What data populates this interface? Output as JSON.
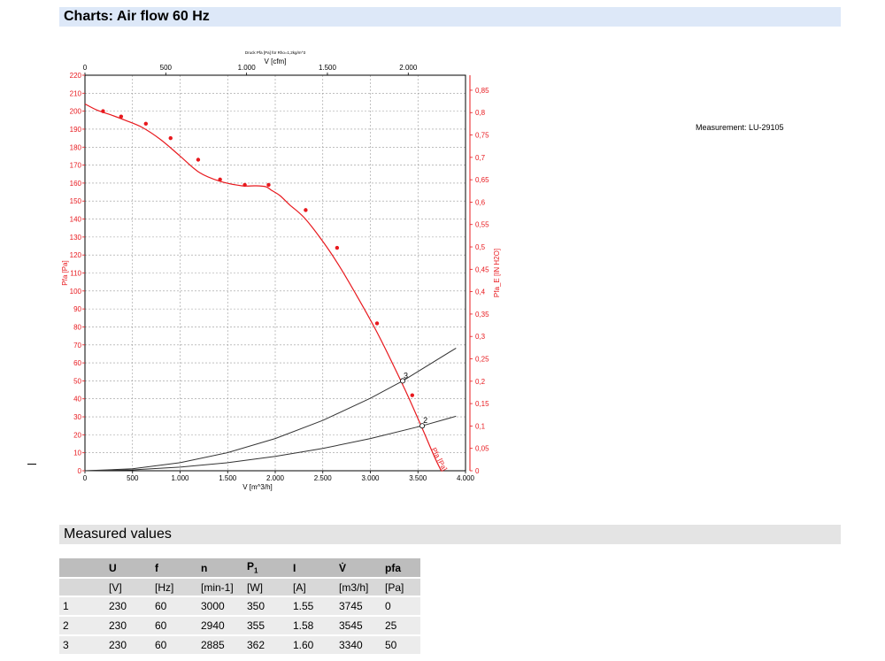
{
  "header": {
    "charts_title": "Charts: Air flow 60 Hz",
    "measured_title": "Measured values"
  },
  "measurement_note": "Measurement: LU-29105",
  "chart_data": {
    "type": "line",
    "title": "",
    "subtitle": "Druck Pfa [Pa] für Rho=1,2kg/m^3",
    "xlabel": "V [m^3/h]",
    "x2label": "V [cfm]",
    "ylabel": "Pfa [Pa]",
    "y2label": "Pfa_E [IN H2O]",
    "xlim": [
      0,
      4000
    ],
    "x2lim": [
      0,
      2354.3
    ],
    "ylim": [
      0,
      220
    ],
    "y2lim": [
      0,
      0.8835
    ],
    "grid": true,
    "xticks": [
      0,
      500,
      1000,
      1500,
      2000,
      2500,
      3000,
      3500,
      4000
    ],
    "xtick_labels": [
      "0",
      "500",
      "1.000",
      "1.500",
      "2.000",
      "2.500",
      "3.000",
      "3.500",
      "4.000"
    ],
    "x2ticks": [
      0,
      500,
      1000,
      1500,
      2000
    ],
    "x2tick_labels": [
      "0",
      "500",
      "1.000",
      "1.500",
      "2.000"
    ],
    "yticks": [
      0,
      10,
      20,
      30,
      40,
      50,
      60,
      70,
      80,
      90,
      100,
      110,
      120,
      130,
      140,
      150,
      160,
      170,
      180,
      190,
      200,
      210,
      220
    ],
    "y2ticks": [
      0,
      0.05,
      0.1,
      0.15,
      0.2,
      0.25,
      0.3,
      0.35,
      0.4,
      0.45,
      0.5,
      0.55,
      0.6,
      0.65,
      0.7,
      0.75,
      0.8,
      0.85
    ],
    "y2tick_labels": [
      "0",
      "0,05",
      "0,1",
      "0,15",
      "0,2",
      "0,25",
      "0,3",
      "0,35",
      "0,4",
      "0,45",
      "0,5",
      "0,55",
      "0,6",
      "0,65",
      "0,7",
      "0,75",
      "0,8",
      "0,85"
    ],
    "series": [
      {
        "name": "Pfa [Pa]",
        "color": "#e8191e",
        "x": [
          0,
          130,
          270,
          420,
          600,
          800,
          1000,
          1200,
          1420,
          1650,
          1790,
          1900,
          1960,
          2050,
          2150,
          2300,
          2480,
          2660,
          2850,
          3050,
          3230,
          3400,
          3550,
          3680,
          3745
        ],
        "y": [
          204,
          200.5,
          198,
          195,
          191,
          184,
          175,
          166,
          161,
          158.5,
          158.5,
          158,
          156,
          153,
          148,
          141,
          129,
          115,
          98,
          79,
          60,
          41,
          23,
          7,
          0
        ],
        "markers_x": [
          190,
          380,
          640,
          900,
          1190,
          1420,
          1680,
          1930,
          2320,
          2650,
          3070,
          3440
        ],
        "markers_y": [
          200,
          197,
          193,
          185,
          173,
          162,
          159,
          159,
          145,
          124,
          82,
          42
        ]
      },
      {
        "name": "2",
        "color": "#333333",
        "x": [
          0,
          500,
          1000,
          1500,
          2000,
          2500,
          3000,
          3545,
          3900
        ],
        "y": [
          0,
          0.5,
          2,
          4.5,
          8,
          12.4,
          17.9,
          25,
          30.3
        ]
      },
      {
        "name": "3",
        "color": "#333333",
        "x": [
          0,
          500,
          1000,
          1500,
          2000,
          2500,
          3000,
          3340,
          3900
        ],
        "y": [
          0,
          1.1,
          4.5,
          10.1,
          17.9,
          28,
          40.3,
          50,
          68.2
        ]
      }
    ],
    "operating_points": [
      {
        "label": "3",
        "x": 3340,
        "y": 50
      },
      {
        "label": "2",
        "x": 3545,
        "y": 25
      }
    ],
    "curve_label": "Pfa [Pa]"
  },
  "table": {
    "headers": [
      "",
      "U",
      "f",
      "n",
      "P1",
      "I",
      "V̇",
      "pfa"
    ],
    "units": [
      "",
      "[V]",
      "[Hz]",
      "[min-1]",
      "[W]",
      "[A]",
      "[m3/h]",
      "[Pa]"
    ],
    "rows": [
      [
        "1",
        "230",
        "60",
        "3000",
        "350",
        "1.55",
        "3745",
        "0"
      ],
      [
        "2",
        "230",
        "60",
        "2940",
        "355",
        "1.58",
        "3545",
        "25"
      ],
      [
        "3",
        "230",
        "60",
        "2885",
        "362",
        "1.60",
        "3340",
        "50"
      ]
    ]
  }
}
